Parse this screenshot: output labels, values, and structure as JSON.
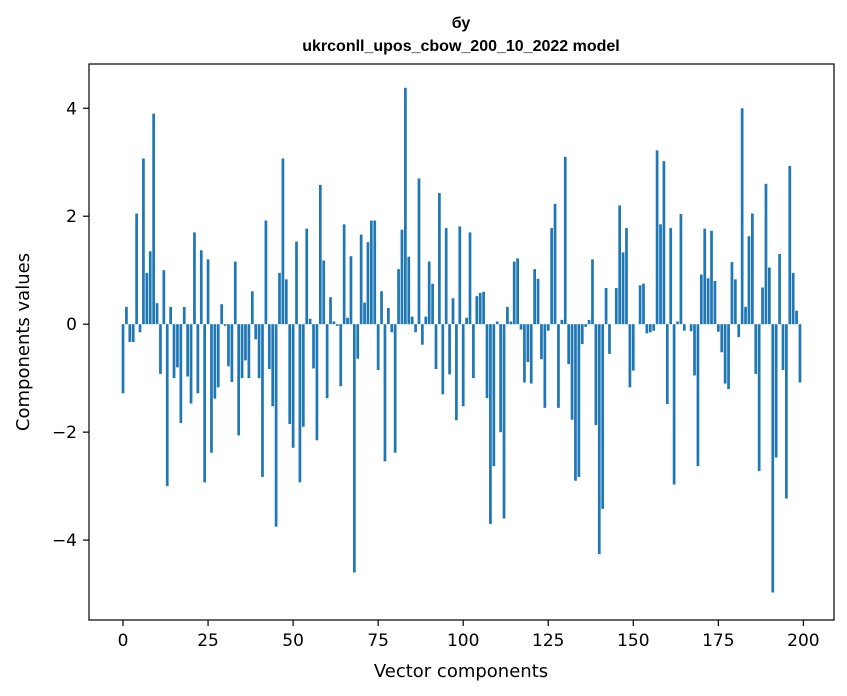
{
  "chart_data": {
    "type": "bar",
    "title": "бу",
    "subtitle": "ukrconll_upos_cbow_200_10_2022 model",
    "xlabel": "Vector components",
    "ylabel": "Components values",
    "xlim": [
      -10,
      209
    ],
    "ylim": [
      -5.48,
      4.82
    ],
    "xticks": [
      0,
      25,
      50,
      75,
      100,
      125,
      150,
      175,
      200
    ],
    "yticks": [
      -4,
      -2,
      0,
      2,
      4
    ],
    "x_tick_labels": [
      "0",
      "25",
      "50",
      "75",
      "100",
      "125",
      "150",
      "175",
      "200"
    ],
    "y_tick_labels": [
      "−4",
      "−2",
      "0",
      "2",
      "4"
    ],
    "grid": false,
    "bar_color": "#1f77b4",
    "categories_start": 0,
    "values": [
      -1.28,
      0.32,
      -0.33,
      -0.33,
      2.05,
      -0.15,
      3.07,
      0.95,
      1.35,
      3.9,
      0.39,
      -0.92,
      1.0,
      -3.0,
      0.32,
      -1.0,
      -0.8,
      -1.83,
      0.32,
      -0.97,
      -1.47,
      1.7,
      -1.28,
      1.37,
      -2.93,
      1.2,
      -2.38,
      -1.38,
      -1.17,
      0.37,
      -0.03,
      -0.78,
      -1.07,
      1.16,
      -2.06,
      -1.0,
      -0.67,
      -1.0,
      0.61,
      -0.28,
      -1.0,
      -2.83,
      1.92,
      -0.83,
      -1.52,
      -3.75,
      0.95,
      3.07,
      0.83,
      -1.85,
      -2.29,
      1.53,
      -2.93,
      -1.9,
      1.77,
      0.1,
      -0.82,
      -2.15,
      2.58,
      1.18,
      -1.37,
      0.5,
      0.05,
      -0.03,
      -1.15,
      1.85,
      0.12,
      1.26,
      -4.6,
      -0.64,
      1.66,
      0.4,
      1.52,
      1.92,
      1.92,
      -0.85,
      0.61,
      -2.54,
      0.3,
      -0.15,
      -2.38,
      1.02,
      1.75,
      4.38,
      1.25,
      0.14,
      -0.15,
      2.7,
      -0.38,
      0.14,
      1.16,
      0.75,
      -0.83,
      2.43,
      -1.3,
      1.78,
      -0.93,
      0.48,
      -1.78,
      1.81,
      -1.52,
      0.12,
      1.7,
      -1.0,
      0.52,
      0.58,
      0.6,
      -1.37,
      -3.7,
      -2.63,
      0.05,
      -2.0,
      -3.6,
      0.32,
      0.05,
      1.16,
      1.22,
      -0.1,
      -1.08,
      -0.7,
      -1.1,
      1.02,
      0.84,
      -0.65,
      -1.55,
      -0.12,
      1.78,
      2.23,
      -1.55,
      0.08,
      3.1,
      -0.74,
      -1.77,
      -2.9,
      -2.83,
      -0.37,
      -0.05,
      0.08,
      1.2,
      -1.87,
      -4.26,
      -3.42,
      0.67,
      -0.55,
      0.0,
      0.67,
      2.2,
      1.33,
      1.78,
      -1.17,
      -0.86,
      0.0,
      0.72,
      0.75,
      -0.17,
      -0.15,
      -0.12,
      3.22,
      1.85,
      3.02,
      -1.48,
      1.78,
      -2.97,
      0.05,
      2.04,
      -0.12,
      0.0,
      -0.13,
      -0.95,
      -2.63,
      0.92,
      1.77,
      0.85,
      1.73,
      0.8,
      -0.14,
      -0.52,
      -1.1,
      -1.2,
      1.15,
      0.83,
      -0.24,
      4.0,
      0.32,
      1.63,
      2.05,
      -0.92,
      -2.72,
      0.68,
      2.6,
      1.05,
      -4.97,
      -2.47,
      1.3,
      -0.85,
      -3.23,
      2.93,
      0.95,
      0.25,
      -1.08
    ]
  }
}
